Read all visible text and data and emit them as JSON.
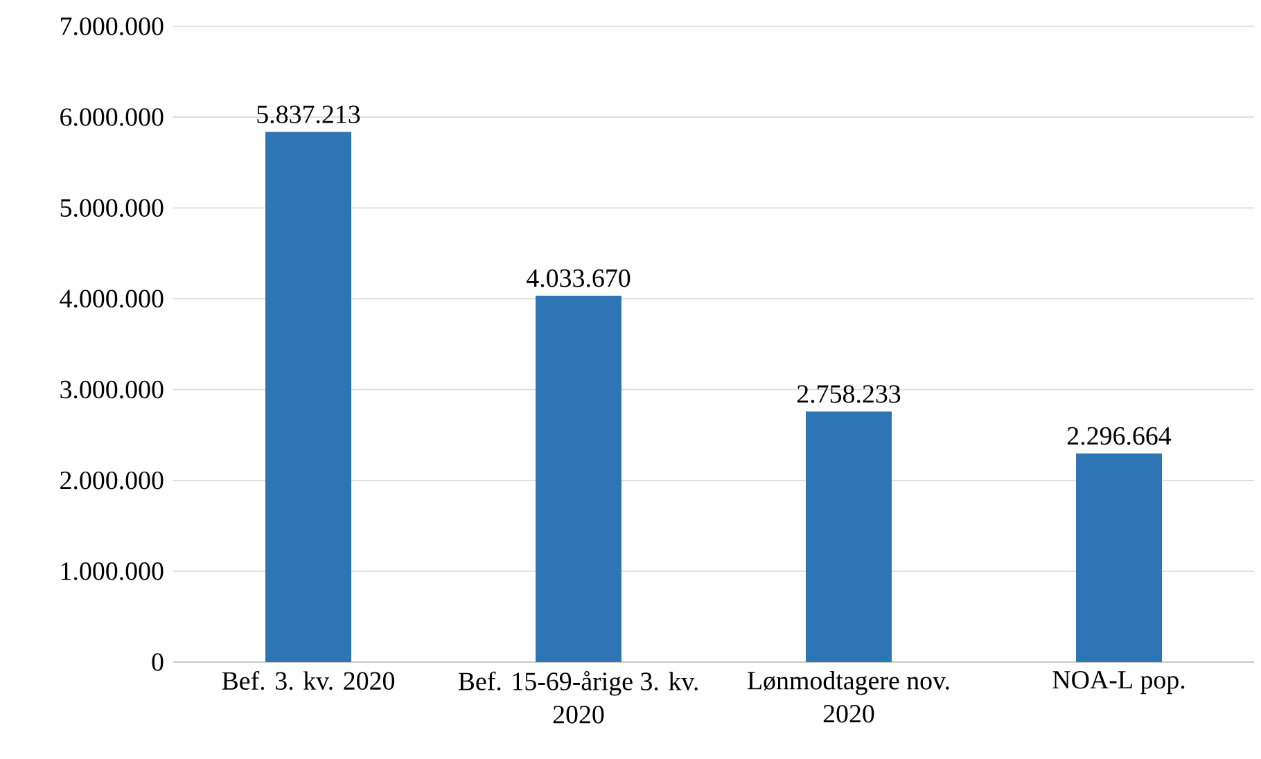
{
  "chart_data": {
    "type": "bar",
    "categories": [
      "Bef. 3. kv. 2020",
      "Bef. 15-69-årige 3. kv. 2020",
      "Lønmodtagere nov. 2020",
      "NOA-L pop."
    ],
    "values": [
      5837213,
      4033670,
      2758233,
      2296664
    ],
    "value_labels": [
      "5.837.213",
      "4.033.670",
      "2.758.233",
      "2.296.664"
    ],
    "color": "#2e75b6",
    "ylim": [
      0,
      7000000
    ],
    "yticks": [
      {
        "value": 0,
        "label": "0"
      },
      {
        "value": 1000000,
        "label": "1.000.000"
      },
      {
        "value": 2000000,
        "label": "2.000.000"
      },
      {
        "value": 3000000,
        "label": "3.000.000"
      },
      {
        "value": 4000000,
        "label": "4.000.000"
      },
      {
        "value": 5000000,
        "label": "5.000.000"
      },
      {
        "value": 6000000,
        "label": "6.000.000"
      },
      {
        "value": 7000000,
        "label": "7.000.000"
      }
    ],
    "grid": "y"
  }
}
